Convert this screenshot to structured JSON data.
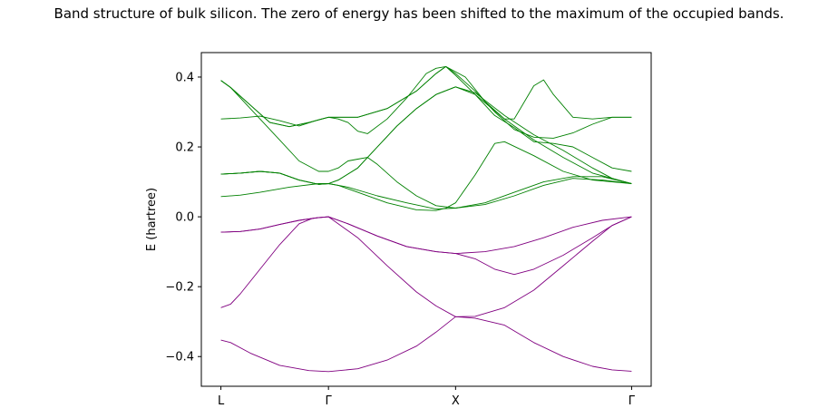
{
  "chart_data": {
    "type": "line",
    "title": "Band structure of bulk silicon. The zero of energy has been shifted to the maximum of the occupied bands.",
    "ylabel": "E (hartree)",
    "xlabel": "",
    "ylim": [
      -0.485,
      0.47
    ],
    "xlim": [
      -0.1,
      2.2
    ],
    "xticks": [
      {
        "x": 0,
        "label": "L"
      },
      {
        "x": 0.55,
        "label": "Γ"
      },
      {
        "x": 1.2,
        "label": "X"
      },
      {
        "x": 2.1,
        "label": "Γ"
      }
    ],
    "yticks": [
      -0.4,
      -0.2,
      0.0,
      0.2,
      0.4
    ],
    "ytick_labels": [
      "−0.4",
      "−0.2",
      "0.0",
      "0.2",
      "0.4"
    ],
    "grid": false,
    "legend": "none",
    "colors": {
      "occupied": "#800080",
      "unoccupied": "#008000"
    },
    "series": [
      {
        "group": "occupied",
        "points": [
          [
            0,
            -0.353
          ],
          [
            0.05,
            -0.36
          ],
          [
            0.15,
            -0.39
          ],
          [
            0.3,
            -0.425
          ],
          [
            0.45,
            -0.44
          ],
          [
            0.55,
            -0.443
          ],
          [
            0.7,
            -0.435
          ],
          [
            0.85,
            -0.41
          ],
          [
            1.0,
            -0.37
          ],
          [
            1.1,
            -0.33
          ],
          [
            1.2,
            -0.286
          ],
          [
            1.3,
            -0.29
          ],
          [
            1.45,
            -0.31
          ],
          [
            1.6,
            -0.36
          ],
          [
            1.75,
            -0.4
          ],
          [
            1.9,
            -0.428
          ],
          [
            2.0,
            -0.438
          ],
          [
            2.1,
            -0.442
          ]
        ]
      },
      {
        "group": "occupied",
        "points": [
          [
            0,
            -0.26
          ],
          [
            0.05,
            -0.25
          ],
          [
            0.1,
            -0.22
          ],
          [
            0.2,
            -0.15
          ],
          [
            0.3,
            -0.08
          ],
          [
            0.4,
            -0.02
          ],
          [
            0.47,
            -0.004
          ],
          [
            0.55,
            0.0
          ],
          [
            0.7,
            -0.06
          ],
          [
            0.85,
            -0.14
          ],
          [
            1.0,
            -0.215
          ],
          [
            1.1,
            -0.255
          ],
          [
            1.2,
            -0.286
          ],
          [
            1.3,
            -0.285
          ],
          [
            1.45,
            -0.26
          ],
          [
            1.6,
            -0.21
          ],
          [
            1.75,
            -0.14
          ],
          [
            1.9,
            -0.07
          ],
          [
            2.0,
            -0.025
          ],
          [
            2.1,
            0.0
          ]
        ]
      },
      {
        "group": "occupied",
        "points": [
          [
            0,
            -0.044
          ],
          [
            0.1,
            -0.042
          ],
          [
            0.2,
            -0.035
          ],
          [
            0.3,
            -0.022
          ],
          [
            0.4,
            -0.01
          ],
          [
            0.5,
            -0.002
          ],
          [
            0.55,
            0.0
          ],
          [
            0.65,
            -0.02
          ],
          [
            0.8,
            -0.055
          ],
          [
            0.95,
            -0.085
          ],
          [
            1.1,
            -0.1
          ],
          [
            1.2,
            -0.105
          ],
          [
            1.3,
            -0.12
          ],
          [
            1.4,
            -0.15
          ],
          [
            1.5,
            -0.165
          ],
          [
            1.6,
            -0.15
          ],
          [
            1.75,
            -0.11
          ],
          [
            1.9,
            -0.06
          ],
          [
            2.0,
            -0.025
          ],
          [
            2.1,
            0.0
          ]
        ]
      },
      {
        "group": "occupied",
        "points": [
          [
            0,
            -0.044
          ],
          [
            0.1,
            -0.042
          ],
          [
            0.2,
            -0.035
          ],
          [
            0.3,
            -0.022
          ],
          [
            0.4,
            -0.01
          ],
          [
            0.5,
            -0.002
          ],
          [
            0.55,
            0.0
          ],
          [
            0.65,
            -0.02
          ],
          [
            0.8,
            -0.055
          ],
          [
            0.95,
            -0.085
          ],
          [
            1.1,
            -0.1
          ],
          [
            1.2,
            -0.105
          ],
          [
            1.35,
            -0.1
          ],
          [
            1.5,
            -0.085
          ],
          [
            1.65,
            -0.06
          ],
          [
            1.8,
            -0.03
          ],
          [
            1.95,
            -0.01
          ],
          [
            2.1,
            0.0
          ]
        ]
      },
      {
        "group": "unoccupied",
        "points": [
          [
            0,
            0.058
          ],
          [
            0.1,
            0.062
          ],
          [
            0.2,
            0.07
          ],
          [
            0.35,
            0.085
          ],
          [
            0.5,
            0.095
          ],
          [
            0.55,
            0.095
          ],
          [
            0.65,
            0.085
          ],
          [
            0.8,
            0.06
          ],
          [
            0.95,
            0.04
          ],
          [
            1.1,
            0.022
          ],
          [
            1.2,
            0.025
          ],
          [
            1.35,
            0.035
          ],
          [
            1.5,
            0.06
          ],
          [
            1.65,
            0.09
          ],
          [
            1.8,
            0.11
          ],
          [
            1.95,
            0.105
          ],
          [
            2.1,
            0.095
          ]
        ]
      },
      {
        "group": "unoccupied",
        "points": [
          [
            0,
            0.122
          ],
          [
            0.1,
            0.125
          ],
          [
            0.2,
            0.13
          ],
          [
            0.3,
            0.125
          ],
          [
            0.4,
            0.105
          ],
          [
            0.5,
            0.093
          ],
          [
            0.55,
            0.095
          ],
          [
            0.6,
            0.09
          ],
          [
            0.7,
            0.07
          ],
          [
            0.85,
            0.04
          ],
          [
            1.0,
            0.02
          ],
          [
            1.1,
            0.018
          ],
          [
            1.15,
            0.025
          ],
          [
            1.2,
            0.04
          ],
          [
            1.3,
            0.12
          ],
          [
            1.4,
            0.21
          ],
          [
            1.45,
            0.215
          ],
          [
            1.6,
            0.175
          ],
          [
            1.75,
            0.13
          ],
          [
            1.9,
            0.105
          ],
          [
            2.1,
            0.095
          ]
        ]
      },
      {
        "group": "unoccupied",
        "points": [
          [
            0,
            0.122
          ],
          [
            0.1,
            0.125
          ],
          [
            0.2,
            0.13
          ],
          [
            0.3,
            0.125
          ],
          [
            0.4,
            0.105
          ],
          [
            0.5,
            0.093
          ],
          [
            0.55,
            0.095
          ],
          [
            0.6,
            0.105
          ],
          [
            0.7,
            0.14
          ],
          [
            0.8,
            0.2
          ],
          [
            0.9,
            0.26
          ],
          [
            1.0,
            0.31
          ],
          [
            1.1,
            0.35
          ],
          [
            1.2,
            0.372
          ],
          [
            1.3,
            0.35
          ],
          [
            1.45,
            0.28
          ],
          [
            1.6,
            0.22
          ],
          [
            1.75,
            0.17
          ],
          [
            1.9,
            0.125
          ],
          [
            2.1,
            0.095
          ]
        ]
      },
      {
        "group": "unoccupied",
        "points": [
          [
            0,
            0.122
          ],
          [
            0.1,
            0.125
          ],
          [
            0.2,
            0.13
          ],
          [
            0.3,
            0.125
          ],
          [
            0.4,
            0.105
          ],
          [
            0.5,
            0.093
          ],
          [
            0.55,
            0.095
          ],
          [
            0.6,
            0.105
          ],
          [
            0.7,
            0.14
          ],
          [
            0.8,
            0.2
          ],
          [
            0.9,
            0.26
          ],
          [
            1.0,
            0.31
          ],
          [
            1.1,
            0.35
          ],
          [
            1.2,
            0.372
          ],
          [
            1.3,
            0.355
          ],
          [
            1.45,
            0.29
          ],
          [
            1.6,
            0.235
          ],
          [
            1.75,
            0.19
          ],
          [
            1.9,
            0.14
          ],
          [
            2.0,
            0.11
          ],
          [
            2.1,
            0.095
          ]
        ]
      },
      {
        "group": "unoccupied",
        "points": [
          [
            0,
            0.39
          ],
          [
            0.05,
            0.37
          ],
          [
            0.1,
            0.34
          ],
          [
            0.2,
            0.28
          ],
          [
            0.3,
            0.22
          ],
          [
            0.4,
            0.16
          ],
          [
            0.5,
            0.13
          ],
          [
            0.55,
            0.13
          ],
          [
            0.6,
            0.14
          ],
          [
            0.65,
            0.16
          ],
          [
            0.7,
            0.165
          ],
          [
            0.75,
            0.17
          ],
          [
            0.8,
            0.15
          ],
          [
            0.9,
            0.1
          ],
          [
            1.0,
            0.06
          ],
          [
            1.1,
            0.032
          ],
          [
            1.2,
            0.025
          ],
          [
            1.35,
            0.04
          ],
          [
            1.5,
            0.07
          ],
          [
            1.65,
            0.1
          ],
          [
            1.8,
            0.115
          ],
          [
            1.95,
            0.115
          ],
          [
            2.1,
            0.095
          ]
        ]
      },
      {
        "group": "unoccupied",
        "points": [
          [
            0,
            0.39
          ],
          [
            0.05,
            0.37
          ],
          [
            0.15,
            0.32
          ],
          [
            0.25,
            0.27
          ],
          [
            0.35,
            0.258
          ],
          [
            0.45,
            0.27
          ],
          [
            0.55,
            0.285
          ],
          [
            0.7,
            0.285
          ],
          [
            0.85,
            0.31
          ],
          [
            1.0,
            0.36
          ],
          [
            1.1,
            0.41
          ],
          [
            1.15,
            0.43
          ],
          [
            1.2,
            0.41
          ],
          [
            1.3,
            0.36
          ],
          [
            1.4,
            0.3
          ],
          [
            1.5,
            0.25
          ],
          [
            1.6,
            0.228
          ],
          [
            1.7,
            0.225
          ],
          [
            1.8,
            0.24
          ],
          [
            1.9,
            0.265
          ],
          [
            2.0,
            0.285
          ],
          [
            2.1,
            0.285
          ]
        ]
      },
      {
        "group": "unoccupied",
        "points": [
          [
            0,
            0.28
          ],
          [
            0.1,
            0.283
          ],
          [
            0.2,
            0.288
          ],
          [
            0.3,
            0.275
          ],
          [
            0.4,
            0.26
          ],
          [
            0.5,
            0.278
          ],
          [
            0.55,
            0.285
          ],
          [
            0.6,
            0.28
          ],
          [
            0.65,
            0.27
          ],
          [
            0.7,
            0.245
          ],
          [
            0.75,
            0.238
          ],
          [
            0.85,
            0.28
          ],
          [
            0.95,
            0.34
          ],
          [
            1.05,
            0.41
          ],
          [
            1.1,
            0.425
          ],
          [
            1.15,
            0.43
          ],
          [
            1.25,
            0.4
          ],
          [
            1.35,
            0.33
          ],
          [
            1.45,
            0.28
          ],
          [
            1.5,
            0.28
          ],
          [
            1.6,
            0.375
          ],
          [
            1.65,
            0.392
          ],
          [
            1.7,
            0.35
          ],
          [
            1.8,
            0.285
          ],
          [
            1.9,
            0.28
          ],
          [
            2.0,
            0.285
          ],
          [
            2.1,
            0.285
          ]
        ]
      },
      {
        "group": "unoccupied",
        "points": [
          [
            0,
            0.39
          ],
          [
            0.05,
            0.37
          ],
          [
            0.15,
            0.32
          ],
          [
            0.25,
            0.27
          ],
          [
            0.35,
            0.258
          ],
          [
            0.45,
            0.27
          ],
          [
            0.55,
            0.285
          ],
          [
            0.7,
            0.285
          ],
          [
            0.85,
            0.31
          ],
          [
            1.0,
            0.36
          ],
          [
            1.1,
            0.41
          ],
          [
            1.15,
            0.43
          ],
          [
            1.2,
            0.405
          ],
          [
            1.3,
            0.35
          ],
          [
            1.4,
            0.29
          ],
          [
            1.5,
            0.255
          ],
          [
            1.6,
            0.215
          ],
          [
            1.7,
            0.21
          ],
          [
            1.8,
            0.2
          ],
          [
            1.9,
            0.17
          ],
          [
            2.0,
            0.14
          ],
          [
            2.1,
            0.13
          ]
        ]
      }
    ]
  }
}
